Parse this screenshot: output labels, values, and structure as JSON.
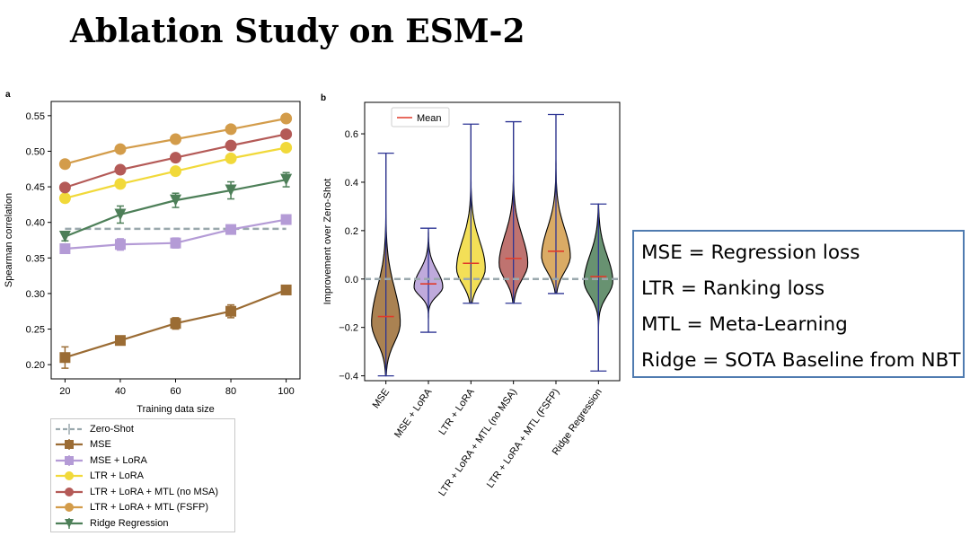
{
  "title": "Ablation Study on ESM-2",
  "definitions": [
    "MSE = Regression loss",
    "LTR = Ranking loss",
    "MTL = Meta-Learning",
    "Ridge = SOTA Baseline from NBT"
  ],
  "chart_data": [
    {
      "panel": "a",
      "type": "line",
      "xlabel": "Training data size",
      "ylabel": "Spearman correlation",
      "xlim": [
        15,
        105
      ],
      "ylim": [
        0.18,
        0.57
      ],
      "x": [
        20,
        40,
        60,
        80,
        100
      ],
      "xticks": [
        "20",
        "40",
        "60",
        "80",
        "100"
      ],
      "yticks": [
        "0.20",
        "0.25",
        "0.30",
        "0.35",
        "0.40",
        "0.45",
        "0.50",
        "0.55"
      ],
      "legend_position": "below",
      "series": [
        {
          "name": "Zero-Shot",
          "color": "#9aa8ad",
          "marker": "dash",
          "values": [
            0.391,
            0.391,
            0.391,
            0.391,
            0.391
          ]
        },
        {
          "name": "MSE",
          "color": "#9b6c34",
          "marker": "square",
          "values": [
            0.21,
            0.234,
            0.258,
            0.275,
            0.305
          ],
          "err": [
            0.015,
            0.005,
            0.008,
            0.009,
            0.005
          ]
        },
        {
          "name": "MSE + LoRA",
          "color": "#b49bd6",
          "marker": "square",
          "values": [
            0.363,
            0.369,
            0.371,
            0.39,
            0.404
          ],
          "err": [
            0.005,
            0.008,
            0.007,
            0.006,
            0.004
          ]
        },
        {
          "name": "LTR + LoRA",
          "color": "#f1d93a",
          "marker": "circle",
          "values": [
            0.434,
            0.454,
            0.472,
            0.49,
            0.505
          ]
        },
        {
          "name": "LTR + LoRA + MTL (no MSA)",
          "color": "#b45a57",
          "marker": "circle",
          "values": [
            0.449,
            0.474,
            0.491,
            0.508,
            0.524
          ]
        },
        {
          "name": "LTR + LoRA + MTL (FSFP)",
          "color": "#d39c4a",
          "marker": "circle",
          "values": [
            0.482,
            0.503,
            0.517,
            0.531,
            0.546
          ]
        },
        {
          "name": "Ridge Regression",
          "color": "#4d7f58",
          "marker": "triangle-down",
          "values": [
            0.38,
            0.411,
            0.431,
            0.445,
            0.46
          ],
          "err": [
            0.006,
            0.012,
            0.01,
            0.012,
            0.01
          ]
        }
      ]
    },
    {
      "panel": "b",
      "type": "violin",
      "ylabel": "Improvement over Zero-Shot",
      "ylim": [
        -0.42,
        0.73
      ],
      "yticks": [
        "−0.4",
        "−0.2",
        "0.0",
        "0.2",
        "0.4",
        "0.6"
      ],
      "legend": "Mean",
      "categories": [
        "MSE",
        "MSE + LoRA",
        "LTR + LoRA",
        "LTR + LoRA + MTL (no MSA)",
        "LTR + LoRA + MTL (FSFP)",
        "Ridge Regression"
      ],
      "series": [
        {
          "name": "MSE",
          "color": "#9b6c34",
          "min": -0.4,
          "max": 0.52,
          "mean": -0.155
        },
        {
          "name": "MSE + LoRA",
          "color": "#b49bd6",
          "min": -0.22,
          "max": 0.21,
          "mean": -0.02
        },
        {
          "name": "LTR + LoRA",
          "color": "#f1d93a",
          "min": -0.1,
          "max": 0.64,
          "mean": 0.065
        },
        {
          "name": "LTR + LoRA + MTL (no MSA)",
          "color": "#b45a57",
          "min": -0.1,
          "max": 0.65,
          "mean": 0.085
        },
        {
          "name": "LTR + LoRA + MTL (FSFP)",
          "color": "#d39c4a",
          "min": -0.06,
          "max": 0.68,
          "mean": 0.115
        },
        {
          "name": "Ridge Regression",
          "color": "#4d7f58",
          "min": -0.38,
          "max": 0.31,
          "mean": 0.01
        }
      ]
    }
  ]
}
